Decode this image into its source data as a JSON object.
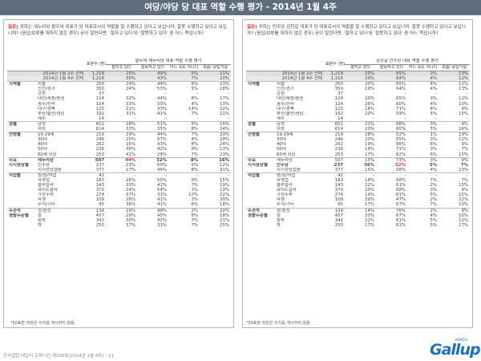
{
  "title": "여당/야당 당 대표 역할 수행 평가 - 2014년 1월 4주",
  "left": {
    "qlabel": "질문)",
    "qtext": "귀하는 새누리당 황우여 대표가 당 대표로서의 역할을 잘 수행하고 있다고 보십니까, 잘못 수행하고 있다고 보십니까? (응답/보류를 대하지 않은 경우) 굳이 말한다면, '잘하고 있다'와 '잘못하고 있다' 중 어느 쪽입니까?",
    "col_n": "표본수 (명)",
    "group": "황우여 새누리당 대표 역할 수행 평가",
    "cols": [
      "잘하고 있다",
      "잘못하고 있다",
      "어느 쪽도 아니다",
      "모름/ 응답거절"
    ],
    "foot": "*50표본 미만은 수치를 게시하지 않음"
  },
  "right": {
    "qlabel": "질문)",
    "qtext": "귀하는 민주당 김한길 대표가 당 대표로서의 역할을 잘 수행하고 있다고 보십니까, 잘못 수행하고 있다고 보십니까? (응답/보류를 대하지 않은 경우) 굳이 말한다면, '잘하고 있다'와 '잘못하고 있다' 중 어느 쪽입니까?",
    "col_n": "표본수 (명)",
    "group": "김한길 민주당 대표 역할 수행 평가",
    "cols": [
      "잘하고 있다",
      "잘못하고 있다",
      "어느 쪽도 아니다",
      "모름/ 응답거절"
    ],
    "foot": "*50표본 미만은 수치를 게시하지 않음"
  },
  "source": "한국갤럽 데일리 오피니언 제100호(2014년 1월 4주) - 11",
  "logo": "Gallup",
  "logo_sub": "KOREA",
  "rows_left": [
    [
      "",
      "2014년 1월 2주 전체",
      "1,219",
      "25%",
      "49%",
      "5%",
      "21%"
    ],
    [
      "",
      "2014년 1월 4주 전체",
      "1,216",
      "30%",
      "43%",
      "7%",
      "20%"
    ],
    [
      "지역별",
      "서울",
      "250",
      "24%",
      "44%",
      "8%",
      "23%"
    ],
    [
      "",
      "인천/경기",
      "350",
      "24%",
      "53%",
      "5%",
      "18%"
    ],
    [
      "",
      "강원",
      "37",
      "-",
      "-",
      "-",
      "-"
    ],
    [
      "",
      "대전/세종/충청",
      "124",
      "32%",
      "44%",
      "8%",
      "17%"
    ],
    [
      "",
      "광주/전라",
      "124",
      "33%",
      "50%",
      "4%",
      "13%"
    ],
    [
      "",
      "대구/경북",
      "125",
      "31%",
      "33%",
      "14%",
      "22%"
    ],
    [
      "",
      "부산/울산/경남",
      "192",
      "31%",
      "41%",
      "7%",
      "21%"
    ],
    [
      "",
      "제주",
      "14",
      "-",
      "-",
      "-",
      "-"
    ],
    [
      "성별",
      "남성",
      "602",
      "28%",
      "51%",
      "5%",
      "15%"
    ],
    [
      "",
      "여성",
      "614",
      "33%",
      "35%",
      "8%",
      "24%"
    ],
    [
      "연령별",
      "19-29세",
      "219",
      "29%",
      "44%",
      "7%",
      "20%"
    ],
    [
      "",
      "30대",
      "246",
      "20%",
      "57%",
      "4%",
      "19%"
    ],
    [
      "",
      "40대",
      "262",
      "25%",
      "43%",
      "8%",
      "24%"
    ],
    [
      "",
      "50대",
      "236",
      "36%",
      "42%",
      "9%",
      "13%"
    ],
    [
      "",
      "60세 이상",
      "253",
      "41%",
      "29%",
      "7%",
      "23%"
    ],
    [
      "주요",
      "새누리당",
      "507",
      "44%",
      "32%",
      "8%",
      "16%"
    ],
    [
      "지지정당별",
      "민주당",
      "237",
      "23%",
      "60%",
      "5%",
      "12%"
    ],
    [
      "",
      "지지정당없음",
      "377",
      "17%",
      "44%",
      "8%",
      "31%"
    ],
    [
      "직업별",
      "농/임/어업",
      "42",
      "-",
      "-",
      "-",
      "-"
    ],
    [
      "",
      "자영업",
      "183",
      "26%",
      "50%",
      "9%",
      "15%"
    ],
    [
      "",
      "블루칼라",
      "143",
      "33%",
      "41%",
      "7%",
      "19%"
    ],
    [
      "",
      "화이트칼라",
      "370",
      "24%",
      "54%",
      "3%",
      "19%"
    ],
    [
      "",
      "가정주부",
      "274",
      "37%",
      "31%",
      "10%",
      "22%"
    ],
    [
      "",
      "학생",
      "109",
      "26%",
      "41%",
      "3%",
      "30%"
    ],
    [
      "",
      "무직/기타",
      "95",
      "36%",
      "41%",
      "6%",
      "18%"
    ],
    [
      "주관적",
      "상/중상",
      "134",
      "29%",
      "49%",
      "2%",
      "20%"
    ],
    [
      "생활수준별",
      "중",
      "457",
      "29%",
      "45%",
      "8%",
      "18%"
    ],
    [
      "",
      "중하",
      "342",
      "30%",
      "42%",
      "7%",
      "21%"
    ],
    [
      "",
      "하",
      "250",
      "37%",
      "31%",
      "7%",
      "25%"
    ]
  ],
  "rows_right": [
    [
      "",
      "2014년 1월 2주 전체",
      "1,219",
      "20%",
      "65%",
      "3%",
      "13%"
    ],
    [
      "",
      "2014년 1월 4주 전체",
      "1,216",
      "20%",
      "64%",
      "4%",
      "12%"
    ],
    [
      "지역별",
      "서울",
      "250",
      "20%",
      "65%",
      "4%",
      "11%"
    ],
    [
      "",
      "인천/경기",
      "350",
      "19%",
      "64%",
      "4%",
      "13%"
    ],
    [
      "",
      "강원",
      "37",
      "-",
      "-",
      "-",
      "-"
    ],
    [
      "",
      "대전/세종/충청",
      "124",
      "20%",
      "65%",
      "3%",
      "12%"
    ],
    [
      "",
      "광주/전라",
      "124",
      "26%",
      "60%",
      "4%",
      "10%"
    ],
    [
      "",
      "대구/경북",
      "125",
      "16%",
      "71%",
      "4%",
      "9%"
    ],
    [
      "",
      "부산/울산/경남",
      "192",
      "20%",
      "59%",
      "5%",
      "15%"
    ],
    [
      "",
      "제주",
      "14",
      "-",
      "-",
      "-",
      "-"
    ],
    [
      "성별",
      "남성",
      "602",
      "21%",
      "68%",
      "3%",
      "9%"
    ],
    [
      "",
      "여성",
      "614",
      "20%",
      "60%",
      "5%",
      "16%"
    ],
    [
      "연령별",
      "19-29세",
      "219",
      "28%",
      "52%",
      "1%",
      "19%"
    ],
    [
      "",
      "30대",
      "246",
      "20%",
      "65%",
      "3%",
      "12%"
    ],
    [
      "",
      "40대",
      "262",
      "19%",
      "66%",
      "6%",
      "9%"
    ],
    [
      "",
      "50대",
      "236",
      "19%",
      "71%",
      "3%",
      "7%"
    ],
    [
      "",
      "60세 이상",
      "253",
      "17%",
      "62%",
      "6%",
      "15%"
    ],
    [
      "주요",
      "새누리당",
      "507",
      "15%",
      "73%",
      "3%",
      "9%"
    ],
    [
      "지지정당별",
      "민주당",
      "237",
      "36%",
      "52%",
      "5%",
      "7%"
    ],
    [
      "",
      "지지정당없음",
      "377",
      "15%",
      "58%",
      "4%",
      "23%"
    ],
    [
      "직업별",
      "농/임/어업",
      "42",
      "-",
      "-",
      "-",
      "-"
    ],
    [
      "",
      "자영업",
      "183",
      "18%",
      "68%",
      "7%",
      "7%"
    ],
    [
      "",
      "블루칼라",
      "143",
      "22%",
      "61%",
      "2%",
      "15%"
    ],
    [
      "",
      "화이트칼라",
      "370",
      "20%",
      "68%",
      "3%",
      "9%"
    ],
    [
      "",
      "가정주부",
      "274",
      "19%",
      "61%",
      "5%",
      "15%"
    ],
    [
      "",
      "학생",
      "109",
      "29%",
      "47%",
      "2%",
      "22%"
    ],
    [
      "",
      "무직/기타",
      "95",
      "17%",
      "67%",
      "7%",
      "10%"
    ],
    [
      "주관적",
      "상/중상",
      "134",
      "14%",
      "76%",
      "2%",
      "9%"
    ],
    [
      "생활수준별",
      "중",
      "457",
      "20%",
      "67%",
      "4%",
      "10%"
    ],
    [
      "",
      "중하",
      "342",
      "22%",
      "61%",
      "5%",
      "12%"
    ],
    [
      "",
      "하",
      "250",
      "17%",
      "61%",
      "5%",
      "17%"
    ]
  ]
}
